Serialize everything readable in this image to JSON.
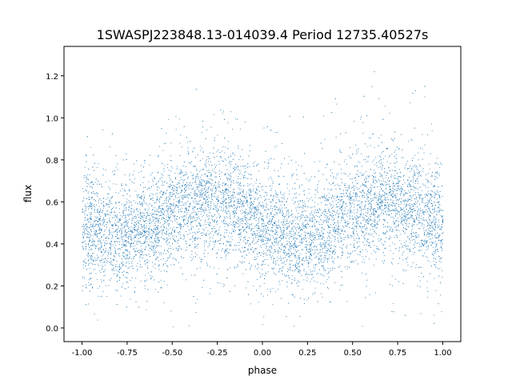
{
  "chart_data": {
    "type": "scatter",
    "title": "1SWASPJ223848.13-014039.4 Period 12735.40527s",
    "xlabel": "phase",
    "ylabel": "flux",
    "xlim": [
      -1.1,
      1.1
    ],
    "ylim": [
      -0.065,
      1.34
    ],
    "xticks": [
      "-1.00",
      "-0.75",
      "-0.50",
      "-0.25",
      "0.00",
      "0.25",
      "0.50",
      "0.75",
      "1.00"
    ],
    "xtick_values": [
      -1.0,
      -0.75,
      -0.5,
      -0.25,
      0.0,
      0.25,
      0.5,
      0.75,
      1.0
    ],
    "yticks": [
      "0.0",
      "0.2",
      "0.4",
      "0.6",
      "0.8",
      "1.0",
      "1.2"
    ],
    "ytick_values": [
      0.0,
      0.2,
      0.4,
      0.6,
      0.8,
      1.0,
      1.2
    ],
    "grid": false,
    "marker_color": "#1f77b4",
    "point_count_approx": 20000,
    "binned_mean_flux": {
      "phase": [
        -1.0,
        -0.9,
        -0.8,
        -0.7,
        -0.6,
        -0.5,
        -0.4,
        -0.3,
        -0.2,
        -0.1,
        0.0,
        0.1,
        0.2,
        0.3,
        0.4,
        0.5,
        0.6,
        0.7,
        0.8,
        0.9,
        1.0
      ],
      "flux": [
        0.48,
        0.46,
        0.45,
        0.46,
        0.5,
        0.56,
        0.59,
        0.6,
        0.58,
        0.54,
        0.5,
        0.45,
        0.43,
        0.45,
        0.5,
        0.56,
        0.59,
        0.6,
        0.58,
        0.53,
        0.49
      ]
    },
    "flux_scatter_sd": 0.12,
    "flux_range": [
      0.0,
      1.28
    ]
  }
}
